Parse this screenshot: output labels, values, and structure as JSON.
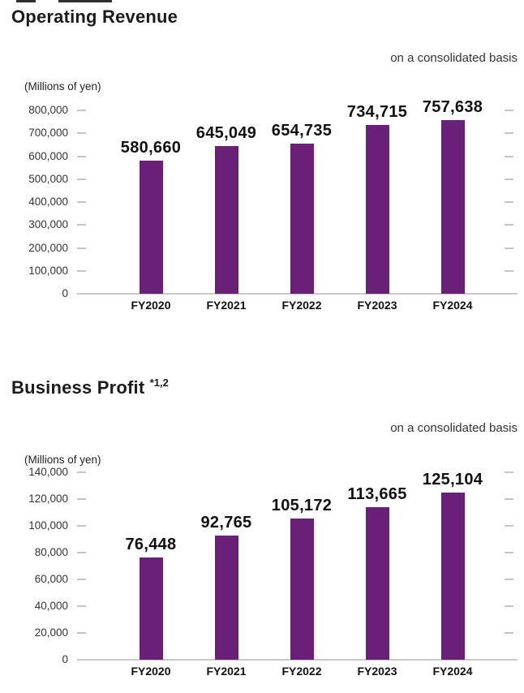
{
  "page": {
    "background": "#ffffff"
  },
  "chart_data": [
    {
      "type": "bar",
      "title": "Operating Revenue",
      "note": "on a consolidated basis",
      "unit": "(Millions of yen)",
      "categories": [
        "FY2020",
        "FY2021",
        "FY2022",
        "FY2023",
        "FY2024"
      ],
      "values": [
        580660,
        645049,
        654735,
        734715,
        757638
      ],
      "value_labels": [
        "580,660",
        "645,049",
        "654,735",
        "734,715",
        "757,638"
      ],
      "ylim": [
        0,
        800000
      ],
      "ytick_step": 100000,
      "ytick_labels": [
        "0",
        "100,000",
        "200,000",
        "300,000",
        "400,000",
        "500,000",
        "600,000",
        "700,000",
        "800,000"
      ],
      "xlabel": "",
      "ylabel": "(Millions of yen)",
      "grid": false,
      "legend": "none",
      "bar_color": "#6A2077"
    },
    {
      "type": "bar",
      "title": "Business Profit",
      "title_superscript": "*1,2",
      "note": "on a consolidated basis",
      "unit": "(Millions of yen)",
      "categories": [
        "FY2020",
        "FY2021",
        "FY2022",
        "FY2023",
        "FY2024"
      ],
      "values": [
        76448,
        92765,
        105172,
        113665,
        125104
      ],
      "value_labels": [
        "76,448",
        "92,765",
        "105,172",
        "113,665",
        "125,104"
      ],
      "ylim": [
        0,
        140000
      ],
      "ytick_step": 20000,
      "ytick_labels": [
        "0",
        "20,000",
        "40,000",
        "60,000",
        "80,000",
        "100,000",
        "120,000",
        "140,000"
      ],
      "xlabel": "",
      "ylabel": "(Millions of yen)",
      "grid": false,
      "legend": "none",
      "bar_color": "#6A2077"
    }
  ],
  "colors": {
    "bar": "#6A2077",
    "axis_text": "#333333",
    "value_text": "#111111",
    "tick": "#c4c4c4",
    "baseline": "#c9c9c9"
  }
}
